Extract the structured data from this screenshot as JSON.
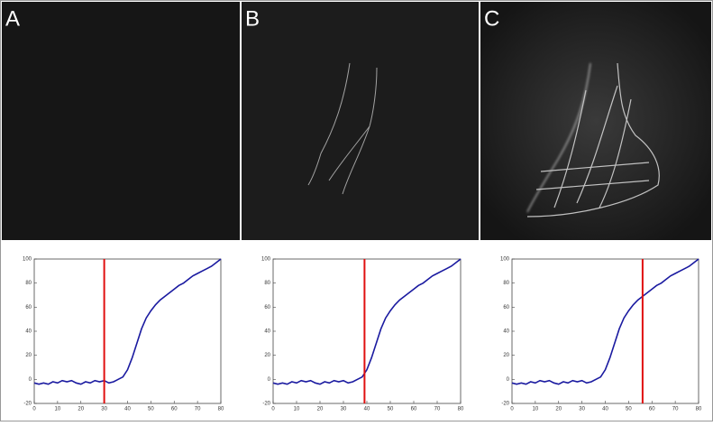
{
  "panel_labels": [
    "A",
    "B",
    "C"
  ],
  "chart_data": [
    {
      "type": "line",
      "x": [
        0,
        2,
        4,
        6,
        8,
        10,
        12,
        14,
        16,
        18,
        20,
        22,
        24,
        26,
        28,
        30,
        32,
        34,
        36,
        38,
        40,
        42,
        44,
        46,
        48,
        50,
        52,
        54,
        56,
        58,
        60,
        62,
        64,
        66,
        68,
        70,
        72,
        74,
        76,
        78,
        80
      ],
      "values": [
        -3,
        -4,
        -3,
        -4,
        -2,
        -3,
        -1,
        -2,
        -1,
        -3,
        -4,
        -2,
        -3,
        -1,
        -2,
        -1,
        -3,
        -2,
        0,
        2,
        8,
        18,
        30,
        42,
        51,
        57,
        62,
        66,
        69,
        72,
        75,
        78,
        80,
        83,
        86,
        88,
        90,
        92,
        94,
        97,
        100
      ],
      "color": "#1a1aa0",
      "marker_x": 30,
      "marker_color": "#e01010",
      "xlim": [
        0,
        80
      ],
      "xticks": [
        0,
        10,
        20,
        30,
        40,
        50,
        60,
        70,
        80
      ],
      "ylim": [
        -20,
        100
      ],
      "yticks": [
        -20,
        0,
        20,
        40,
        60,
        80,
        100
      ]
    },
    {
      "type": "line",
      "x": [
        0,
        2,
        4,
        6,
        8,
        10,
        12,
        14,
        16,
        18,
        20,
        22,
        24,
        26,
        28,
        30,
        32,
        34,
        36,
        38,
        40,
        42,
        44,
        46,
        48,
        50,
        52,
        54,
        56,
        58,
        60,
        62,
        64,
        66,
        68,
        70,
        72,
        74,
        76,
        78,
        80
      ],
      "values": [
        -3,
        -4,
        -3,
        -4,
        -2,
        -3,
        -1,
        -2,
        -1,
        -3,
        -4,
        -2,
        -3,
        -1,
        -2,
        -1,
        -3,
        -2,
        0,
        2,
        8,
        18,
        30,
        42,
        51,
        57,
        62,
        66,
        69,
        72,
        75,
        78,
        80,
        83,
        86,
        88,
        90,
        92,
        94,
        97,
        100
      ],
      "color": "#1a1aa0",
      "marker_x": 39,
      "marker_color": "#e01010",
      "xlim": [
        0,
        80
      ],
      "xticks": [
        0,
        10,
        20,
        30,
        40,
        50,
        60,
        70,
        80
      ],
      "ylim": [
        -20,
        100
      ],
      "yticks": [
        -20,
        0,
        20,
        40,
        60,
        80,
        100
      ]
    },
    {
      "type": "line",
      "x": [
        0,
        2,
        4,
        6,
        8,
        10,
        12,
        14,
        16,
        18,
        20,
        22,
        24,
        26,
        28,
        30,
        32,
        34,
        36,
        38,
        40,
        42,
        44,
        46,
        48,
        50,
        52,
        54,
        56,
        58,
        60,
        62,
        64,
        66,
        68,
        70,
        72,
        74,
        76,
        78,
        80
      ],
      "values": [
        -3,
        -4,
        -3,
        -4,
        -2,
        -3,
        -1,
        -2,
        -1,
        -3,
        -4,
        -2,
        -3,
        -1,
        -2,
        -1,
        -3,
        -2,
        0,
        2,
        8,
        18,
        30,
        42,
        51,
        57,
        62,
        66,
        69,
        72,
        75,
        78,
        80,
        83,
        86,
        88,
        90,
        92,
        94,
        97,
        100
      ],
      "color": "#1a1aa0",
      "marker_x": 56,
      "marker_color": "#e01010",
      "xlim": [
        0,
        80
      ],
      "xticks": [
        0,
        10,
        20,
        30,
        40,
        50,
        60,
        70,
        80
      ],
      "ylim": [
        -20,
        100
      ],
      "yticks": [
        -20,
        0,
        20,
        40,
        60,
        80,
        100
      ]
    }
  ]
}
